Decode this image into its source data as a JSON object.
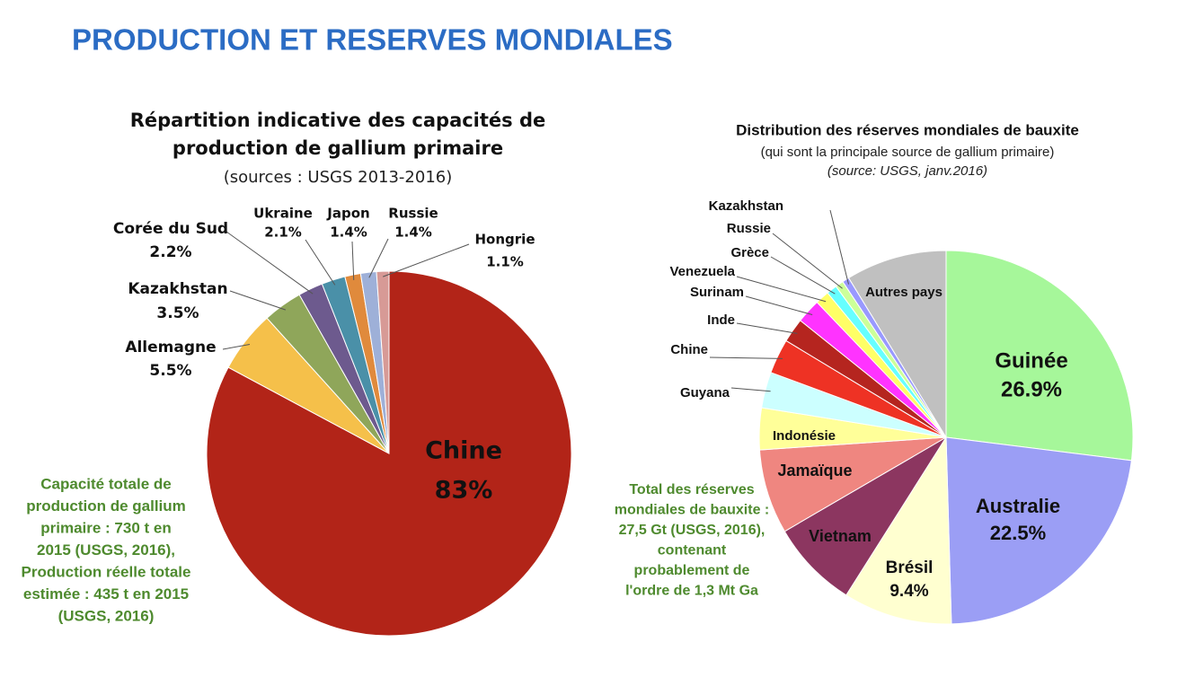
{
  "title": "PRODUCTION ET RESERVES MONDIALES",
  "chart_data": [
    {
      "type": "pie",
      "title": [
        "Répartition indicative des capacités de",
        "production de gallium primaire"
      ],
      "subtitle": "(sources : USGS 2013-2016)",
      "categories": [
        "Chine",
        "Allemagne",
        "Kazakhstan",
        "Corée du Sud",
        "Ukraine",
        "Japon",
        "Russie",
        "Hongrie"
      ],
      "values": [
        83,
        5.5,
        3.5,
        2.2,
        2.1,
        1.4,
        1.4,
        1.1
      ],
      "value_labels": [
        "83%",
        "5.5%",
        "3.5%",
        "2.2%",
        "2.1%",
        "1.4%",
        "1.4%",
        "1.1%"
      ],
      "colors": [
        "#b22418",
        "#f5c04a",
        "#8fa65a",
        "#6d5a8e",
        "#4a90a8",
        "#e08a3c",
        "#9eb0d8",
        "#d79a96"
      ],
      "annotation": [
        "Capacité totale de",
        "production de gallium",
        "primaire : 730 t en",
        "2015 (USGS, 2016),",
        "Production réelle totale",
        "estimée : 435 t en 2015",
        "(USGS, 2016)"
      ]
    },
    {
      "type": "pie",
      "title": [
        "Distribution des réserves mondiales de bauxite"
      ],
      "subtitle": "(qui sont la principale source de gallium primaire)",
      "source": "(source: USGS, janv.2016)",
      "categories": [
        "Guinée",
        "Australie",
        "Brésil",
        "Vietnam",
        "Jamaïque",
        "Indonésie",
        "Guyana",
        "Chine",
        "Inde",
        "Surinam",
        "Venezuela",
        "Grèce",
        "Russie",
        "Kazakhstan",
        "Autres pays"
      ],
      "values": [
        26.9,
        22.5,
        9.4,
        7.6,
        7.3,
        3.6,
        3.1,
        3.0,
        2.1,
        2.1,
        1.2,
        0.9,
        0.7,
        0.6,
        8.7
      ],
      "value_labels": [
        "26.9%",
        "22.5%",
        "9.4%",
        null,
        null,
        null,
        null,
        null,
        null,
        null,
        null,
        null,
        null,
        null,
        null
      ],
      "colors": [
        "#a6f79a",
        "#9b9ef5",
        "#ffffd0",
        "#8c3660",
        "#ef8680",
        "#ffff99",
        "#ccffff",
        "#ee3224",
        "#b5251f",
        "#ff33ff",
        "#ffff66",
        "#66ffff",
        "#ccff99",
        "#9999ff",
        "#c0c0c0"
      ],
      "annotation": [
        "Total des réserves",
        "mondiales de bauxite :",
        "27,5 Gt (USGS, 2016),",
        "contenant",
        "probablement de",
        "l'ordre de 1,3 Mt Ga"
      ]
    }
  ]
}
